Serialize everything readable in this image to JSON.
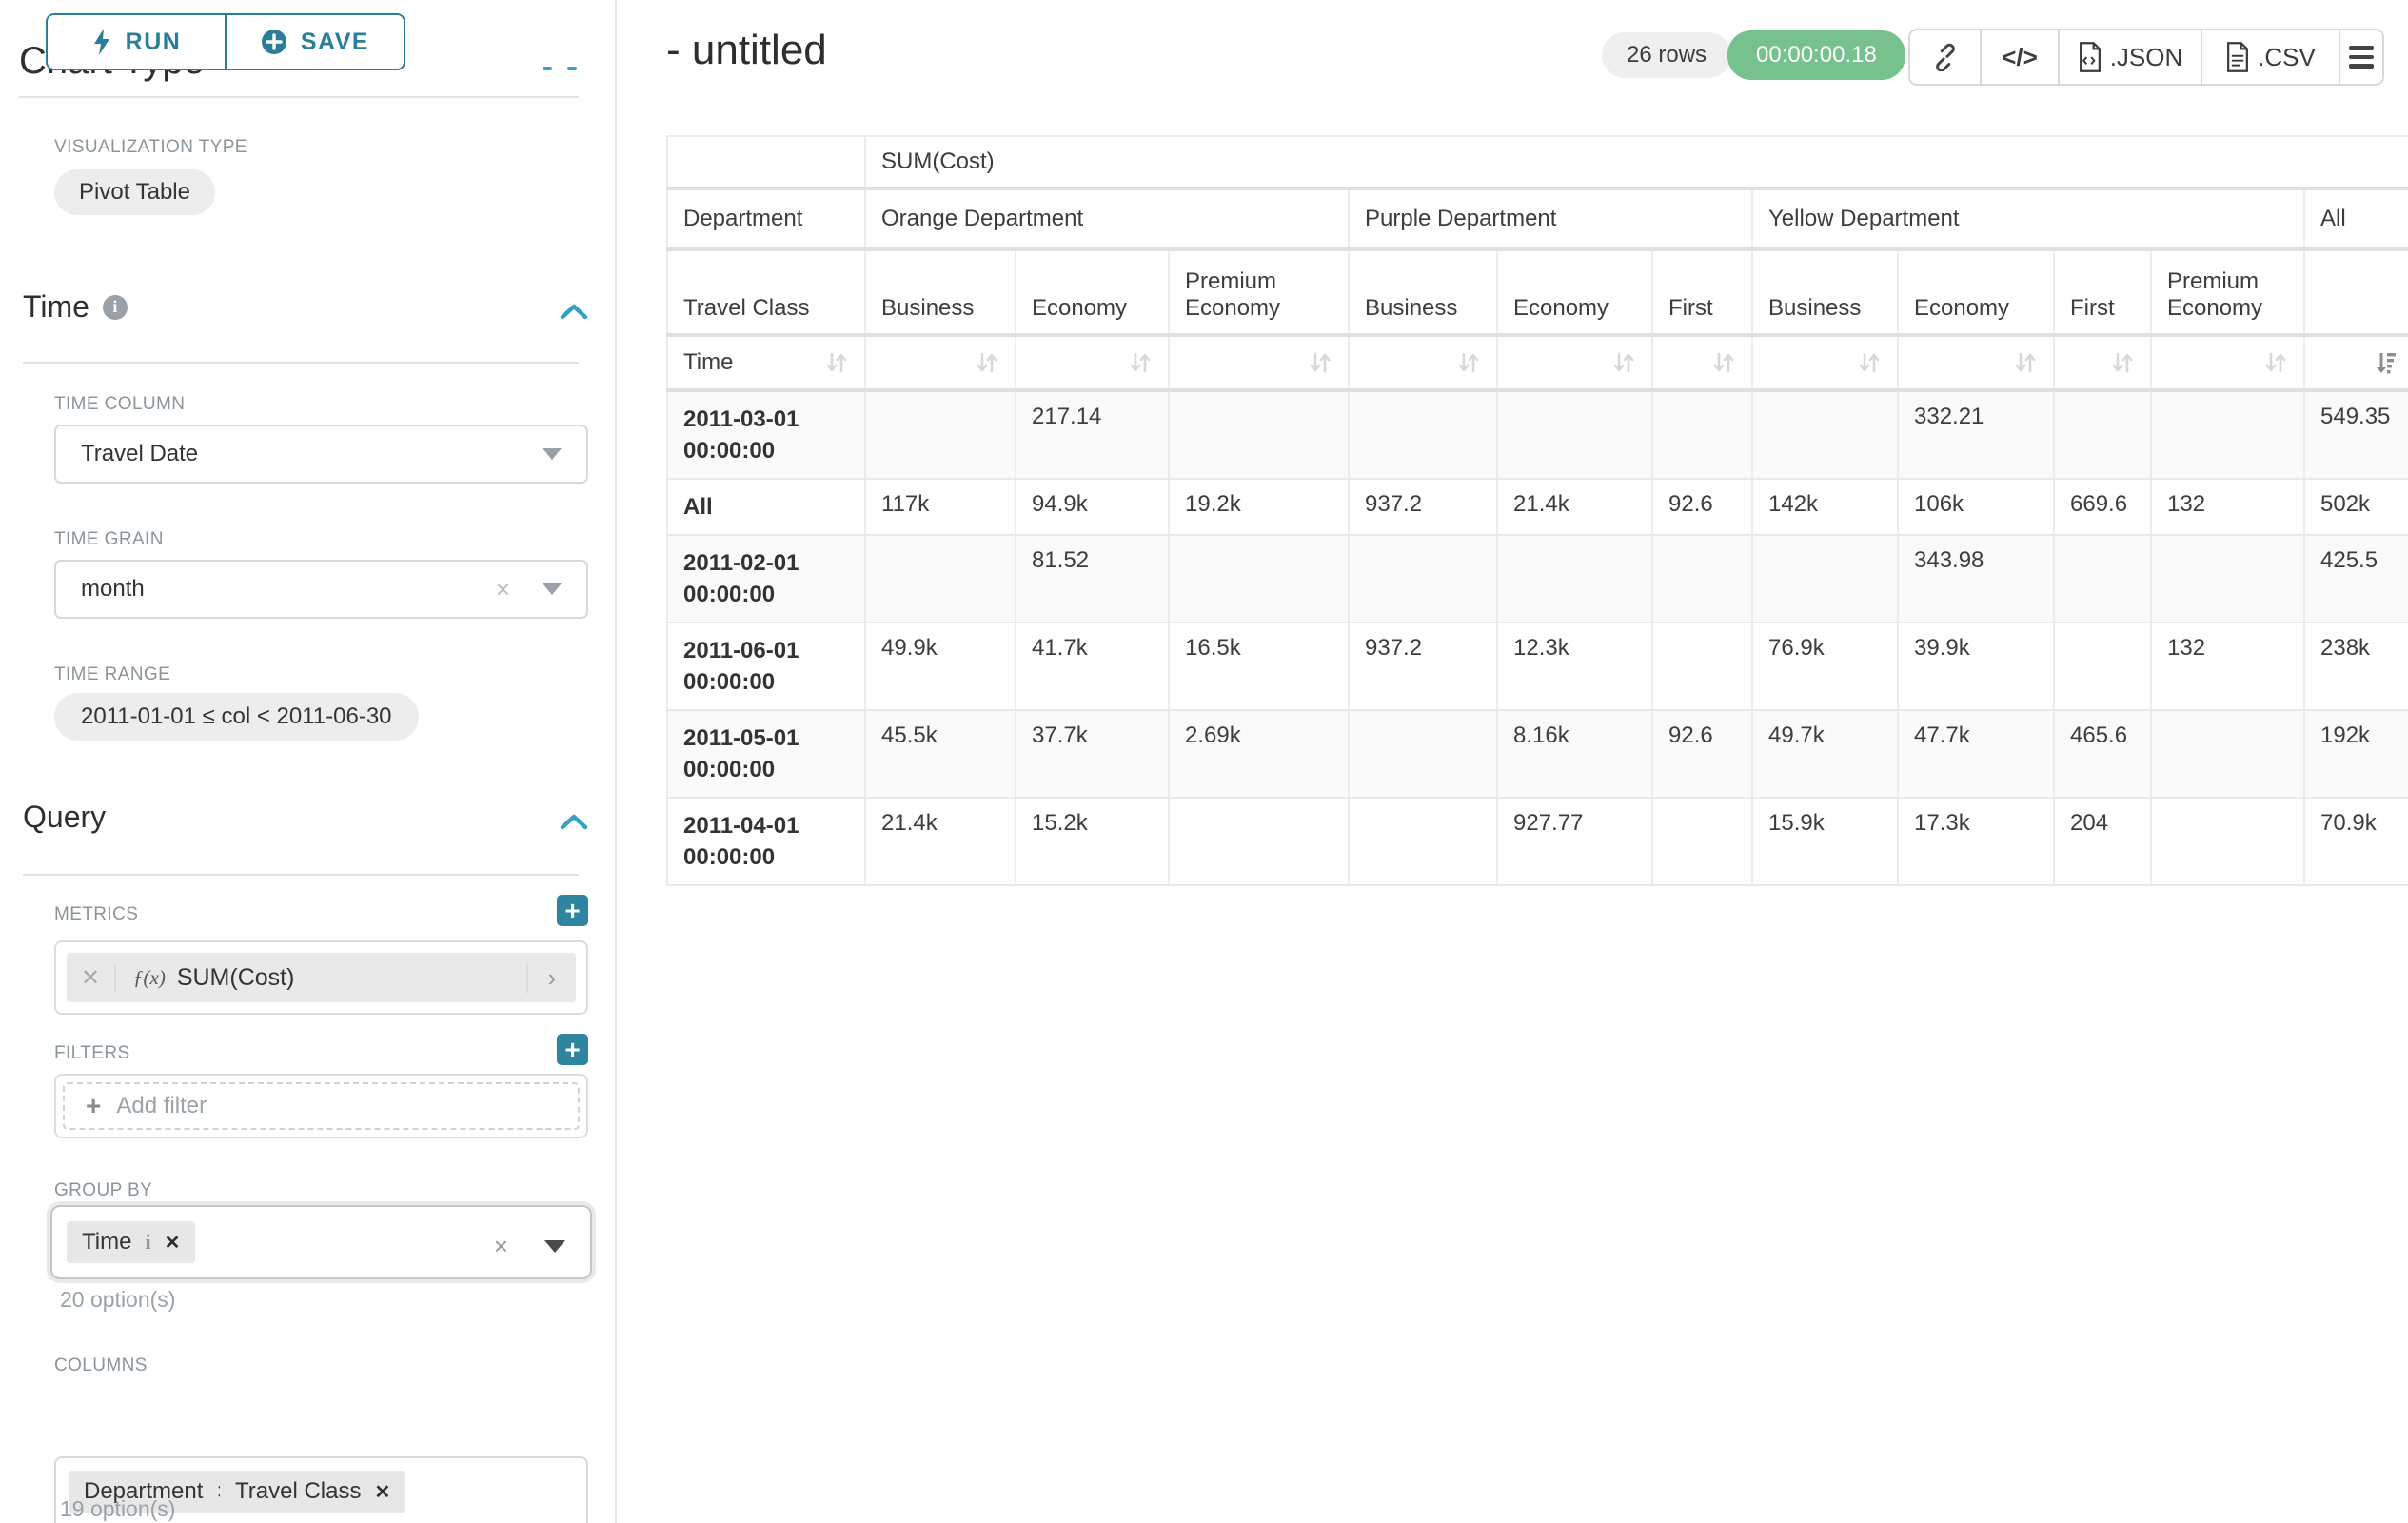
{
  "sidebar": {
    "run_button": "RUN",
    "save_button": "SAVE",
    "scrolled_section_heading": "Chart Type",
    "viz_type": {
      "label": "VISUALIZATION TYPE",
      "value": "Pivot Table"
    },
    "time": {
      "heading": "Time",
      "column_label": "TIME COLUMN",
      "column_value": "Travel Date",
      "grain_label": "TIME GRAIN",
      "grain_value": "month",
      "range_label": "TIME RANGE",
      "range_value": "2011-01-01 ≤ col < 2011-06-30"
    },
    "query": {
      "heading": "Query",
      "metrics_label": "METRICS",
      "metric_fx": "ƒ(x)",
      "metric_name": "SUM(Cost)",
      "filters_label": "FILTERS",
      "add_filter_placeholder": "Add filter",
      "group_by_label": "GROUP BY",
      "group_by_tag": "Time",
      "group_by_hint": "20 option(s)",
      "columns_label": "COLUMNS",
      "columns_tag_1": "Department",
      "columns_tag_2": "Travel Class",
      "columns_hint": "19 option(s)"
    }
  },
  "results_header": {
    "title": "- untitled",
    "row_count_badge": "26 rows",
    "query_timer": "00:00:00.18",
    "embed_code_glyph": "</>",
    "json_label": ".JSON",
    "csv_label": ".CSV"
  },
  "pivot": {
    "metric_header": "SUM(Cost)",
    "row_dimension_label": "Department",
    "col_dimension_label": "Travel Class",
    "time_header_label": "Time",
    "groups": [
      {
        "name": "Orange Department",
        "columns": [
          "Business",
          "Economy",
          "Premium Economy"
        ]
      },
      {
        "name": "Purple Department",
        "columns": [
          "Business",
          "Economy",
          "First"
        ]
      },
      {
        "name": "Yellow Department",
        "columns": [
          "Business",
          "Economy",
          "First",
          "Premium Economy"
        ]
      }
    ],
    "all_column_label": "All",
    "rows": [
      {
        "label": "2011-03-01",
        "sublabel": "00:00:00",
        "values": [
          "",
          "217.14",
          "",
          "",
          "",
          "",
          "",
          "332.21",
          "",
          "",
          "549.35"
        ]
      },
      {
        "label": "All",
        "sublabel": "",
        "values": [
          "117k",
          "94.9k",
          "19.2k",
          "937.2",
          "21.4k",
          "92.6",
          "142k",
          "106k",
          "669.6",
          "132",
          "502k"
        ]
      },
      {
        "label": "2011-02-01",
        "sublabel": "00:00:00",
        "values": [
          "",
          "81.52",
          "",
          "",
          "",
          "",
          "",
          "343.98",
          "",
          "",
          "425.5"
        ]
      },
      {
        "label": "2011-06-01",
        "sublabel": "00:00:00",
        "values": [
          "49.9k",
          "41.7k",
          "16.5k",
          "937.2",
          "12.3k",
          "",
          "76.9k",
          "39.9k",
          "",
          "132",
          "238k"
        ]
      },
      {
        "label": "2011-05-01",
        "sublabel": "00:00:00",
        "values": [
          "45.5k",
          "37.7k",
          "2.69k",
          "",
          "8.16k",
          "92.6",
          "49.7k",
          "47.7k",
          "465.6",
          "",
          "192k"
        ]
      },
      {
        "label": "2011-04-01",
        "sublabel": "00:00:00",
        "values": [
          "21.4k",
          "15.2k",
          "",
          "",
          "927.77",
          "",
          "15.9k",
          "17.3k",
          "204",
          "",
          "70.9k"
        ]
      }
    ]
  },
  "colors": {
    "accent_teal": "#2b7e99",
    "plus_button_teal": "#2f84a0",
    "chevron_blue": "#36a0c4",
    "timer_green": "#77c18f"
  }
}
